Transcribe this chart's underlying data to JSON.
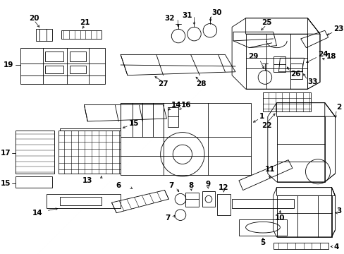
{
  "background_color": "#ffffff",
  "line_color": "#000000",
  "fig_width": 4.89,
  "fig_height": 3.6,
  "dpi": 100,
  "label_fontsize": 7.5,
  "lw": 0.6
}
